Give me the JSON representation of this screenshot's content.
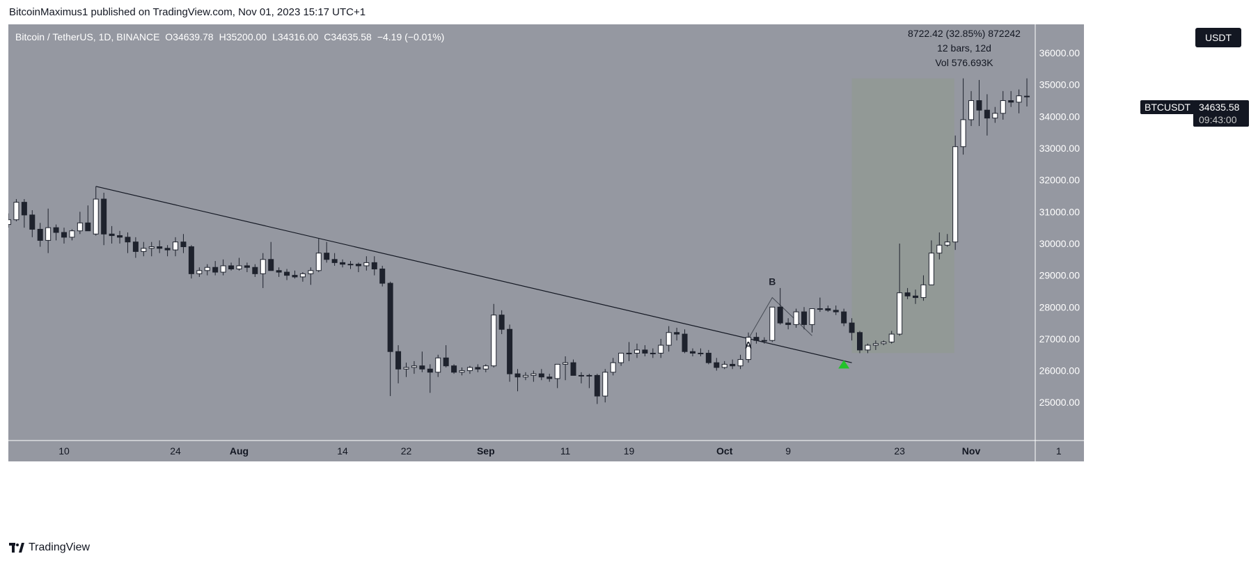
{
  "header": {
    "published": "BitcoinMaximus1 published on TradingView.com, Nov 01, 2023 15:17 UTC+1"
  },
  "symbol": {
    "title": "Bitcoin / TetherUS, 1D, BINANCE",
    "o_key": "O",
    "o_val": "34639.78",
    "h_key": "H",
    "h_val": "35200.00",
    "l_key": "L",
    "l_val": "34316.00",
    "c_key": "C",
    "c_val": "34635.58",
    "change": "−4.19 (−0.01%)"
  },
  "measure": {
    "line1": "8722.42 (32.85%) 872242",
    "line2": "12 bars, 12d",
    "line3": "Vol 576.693K"
  },
  "currency_button": "USDT",
  "price_label": {
    "symbol": "BTCUSDT",
    "price": "34635.58",
    "countdown": "09:43:00"
  },
  "brand": "TradingView",
  "colors": {
    "background": "#9598a1",
    "up": "#ffffff",
    "down": "#1e222d",
    "measure_band": "#8f9a8e",
    "arrow": "#22c22a",
    "trendline": "#131722"
  },
  "chart_data": {
    "type": "candlestick",
    "title": "Bitcoin / TetherUS, 1D, BINANCE",
    "ylim": [
      23800,
      36900
    ],
    "y_ticks": [
      25000,
      26000,
      27000,
      28000,
      29000,
      30000,
      31000,
      32000,
      33000,
      34000,
      35000,
      36000
    ],
    "y_tick_labels": [
      "25000.00",
      "26000.00",
      "27000.00",
      "28000.00",
      "29000.00",
      "30000.00",
      "31000.00",
      "32000.00",
      "33000.00",
      "34000.00",
      "35000.00",
      "36000.00"
    ],
    "x_ticks": [
      {
        "label": "10",
        "day": 7,
        "bold": false
      },
      {
        "label": "24",
        "day": 21,
        "bold": false
      },
      {
        "label": "Aug",
        "day": 29,
        "bold": true
      },
      {
        "label": "14",
        "day": 42,
        "bold": false
      },
      {
        "label": "22",
        "day": 50,
        "bold": false
      },
      {
        "label": "Sep",
        "day": 60,
        "bold": true
      },
      {
        "label": "11",
        "day": 70,
        "bold": false
      },
      {
        "label": "19",
        "day": 78,
        "bold": false
      },
      {
        "label": "Oct",
        "day": 90,
        "bold": true
      },
      {
        "label": "9",
        "day": 98,
        "bold": false
      },
      {
        "label": "23",
        "day": 112,
        "bold": false
      },
      {
        "label": "Nov",
        "day": 121,
        "bold": true
      },
      {
        "label": "1",
        "day": 132,
        "bold": false
      }
    ],
    "first_day": "2023-07-03",
    "candles": [
      [
        30600,
        30950,
        30500,
        30750
      ],
      [
        30750,
        31400,
        30700,
        31300
      ],
      [
        31300,
        31400,
        30500,
        30900
      ],
      [
        30900,
        31050,
        30200,
        30450
      ],
      [
        30450,
        30650,
        29900,
        30100
      ],
      [
        30100,
        31100,
        29700,
        30500
      ],
      [
        30500,
        30600,
        30100,
        30350
      ],
      [
        30350,
        30500,
        30000,
        30200
      ],
      [
        30200,
        30450,
        30100,
        30400
      ],
      [
        30400,
        31000,
        30300,
        30650
      ],
      [
        30650,
        31200,
        30400,
        30400
      ],
      [
        30300,
        31800,
        30250,
        31400
      ],
      [
        31400,
        31600,
        29950,
        30300
      ],
      [
        30300,
        30550,
        30000,
        30250
      ],
      [
        30250,
        30400,
        30000,
        30200
      ],
      [
        30200,
        30350,
        29700,
        30050
      ],
      [
        30050,
        30200,
        29550,
        29750
      ],
      [
        29750,
        30050,
        29600,
        29850
      ],
      [
        29850,
        30050,
        29600,
        29900
      ],
      [
        29900,
        30100,
        29700,
        29850
      ],
      [
        29850,
        29950,
        29600,
        29800
      ],
      [
        29800,
        30200,
        29600,
        30050
      ],
      [
        30050,
        30300,
        29700,
        29900
      ],
      [
        29900,
        29950,
        28900,
        29050
      ],
      [
        29050,
        29250,
        28950,
        29150
      ],
      [
        29150,
        29350,
        29000,
        29250
      ],
      [
        29250,
        29450,
        29000,
        29100
      ],
      [
        29100,
        29500,
        29000,
        29300
      ],
      [
        29300,
        29400,
        29150,
        29200
      ],
      [
        29200,
        29550,
        29150,
        29300
      ],
      [
        29300,
        29400,
        29100,
        29250
      ],
      [
        29250,
        29350,
        28950,
        29050
      ],
      [
        29050,
        29700,
        28600,
        29500
      ],
      [
        29500,
        30050,
        29200,
        29150
      ],
      [
        29150,
        29250,
        28950,
        29100
      ],
      [
        29100,
        29200,
        28850,
        29000
      ],
      [
        29000,
        29150,
        28900,
        28950
      ],
      [
        28950,
        29100,
        28800,
        29050
      ],
      [
        29050,
        29250,
        28700,
        29150
      ],
      [
        29150,
        30150,
        29100,
        29700
      ],
      [
        29700,
        30050,
        29400,
        29500
      ],
      [
        29500,
        29700,
        29300,
        29400
      ],
      [
        29400,
        29500,
        29250,
        29350
      ],
      [
        29350,
        29450,
        29200,
        29350
      ],
      [
        29350,
        29400,
        29100,
        29300
      ],
      [
        29300,
        29600,
        29150,
        29400
      ],
      [
        29400,
        29600,
        29000,
        29200
      ],
      [
        29200,
        29300,
        28650,
        28750
      ],
      [
        28750,
        28800,
        25200,
        26600
      ],
      [
        26600,
        26800,
        25600,
        26050
      ],
      [
        26050,
        26250,
        25800,
        26100
      ],
      [
        26100,
        26300,
        25900,
        26150
      ],
      [
        26150,
        26600,
        25950,
        26050
      ],
      [
        26050,
        26200,
        25300,
        25950
      ],
      [
        25950,
        26500,
        25800,
        26400
      ],
      [
        26400,
        26800,
        26100,
        26150
      ],
      [
        26150,
        26200,
        25900,
        25950
      ],
      [
        25950,
        26100,
        25850,
        26000
      ],
      [
        26000,
        26150,
        25900,
        26100
      ],
      [
        26100,
        26200,
        25950,
        26050
      ],
      [
        26050,
        26200,
        25950,
        26150
      ],
      [
        26150,
        28100,
        26100,
        27750
      ],
      [
        27750,
        27900,
        27150,
        27300
      ],
      [
        27300,
        27450,
        25650,
        25900
      ],
      [
        25900,
        26050,
        25350,
        25800
      ],
      [
        25800,
        25950,
        25700,
        25850
      ],
      [
        25850,
        26000,
        25650,
        25900
      ],
      [
        25900,
        26050,
        25700,
        25800
      ],
      [
        25800,
        25900,
        25650,
        25750
      ],
      [
        25750,
        26100,
        25450,
        26200
      ],
      [
        26200,
        26450,
        25700,
        26250
      ],
      [
        26250,
        26350,
        25900,
        25850
      ],
      [
        25850,
        25950,
        25600,
        25850
      ],
      [
        25850,
        25900,
        25450,
        25850
      ],
      [
        25850,
        25900,
        24950,
        25200
      ],
      [
        25200,
        26050,
        25000,
        25950
      ],
      [
        25950,
        26400,
        25850,
        26250
      ],
      [
        26250,
        26550,
        26150,
        26550
      ],
      [
        26550,
        26900,
        26300,
        26550
      ],
      [
        26550,
        26850,
        26400,
        26650
      ],
      [
        26650,
        26800,
        26450,
        26550
      ],
      [
        26550,
        26700,
        26400,
        26550
      ],
      [
        26550,
        27000,
        26400,
        26800
      ],
      [
        26800,
        27400,
        26600,
        27200
      ],
      [
        27200,
        27350,
        26950,
        27150
      ],
      [
        27150,
        27300,
        26550,
        26600
      ],
      [
        26600,
        26700,
        26450,
        26550
      ],
      [
        26550,
        26700,
        26450,
        26550
      ],
      [
        26550,
        26650,
        26200,
        26250
      ],
      [
        26250,
        26400,
        26000,
        26100
      ],
      [
        26100,
        26300,
        26050,
        26200
      ],
      [
        26200,
        26350,
        26050,
        26150
      ],
      [
        26150,
        26500,
        26050,
        26350
      ],
      [
        26350,
        27200,
        26250,
        27050
      ],
      [
        27050,
        27200,
        26850,
        26950
      ],
      [
        26950,
        27050,
        26850,
        26950
      ],
      [
        26950,
        28000,
        26900,
        28000
      ],
      [
        28000,
        28600,
        27450,
        27500
      ],
      [
        27500,
        27650,
        27300,
        27450
      ],
      [
        27450,
        27950,
        27350,
        27850
      ],
      [
        27850,
        28000,
        27300,
        27450
      ],
      [
        27450,
        27900,
        27200,
        27950
      ],
      [
        27950,
        28300,
        27850,
        27950
      ],
      [
        27950,
        28050,
        27850,
        27900
      ],
      [
        27900,
        28050,
        27750,
        27850
      ],
      [
        27850,
        27950,
        27400,
        27500
      ],
      [
        27500,
        27650,
        26950,
        27200
      ],
      [
        27200,
        27250,
        26550,
        26650
      ],
      [
        26650,
        26850,
        26550,
        26800
      ],
      [
        26800,
        26950,
        26650,
        26850
      ],
      [
        26850,
        26950,
        26800,
        26900
      ],
      [
        26900,
        27250,
        26850,
        27150
      ],
      [
        27150,
        30000,
        27100,
        28450
      ],
      [
        28450,
        28600,
        28250,
        28350
      ],
      [
        28350,
        28550,
        28100,
        28300
      ],
      [
        28300,
        29000,
        28200,
        28700
      ],
      [
        28700,
        30100,
        28700,
        29700
      ],
      [
        29700,
        30350,
        29500,
        29950
      ],
      [
        29950,
        30300,
        29900,
        30050
      ],
      [
        30050,
        33400,
        29800,
        33050
      ],
      [
        33050,
        35200,
        32800,
        33900
      ],
      [
        33900,
        34800,
        33700,
        34500
      ],
      [
        34500,
        35150,
        33700,
        34200
      ],
      [
        34200,
        34700,
        33400,
        33950
      ],
      [
        33950,
        34300,
        33800,
        34100
      ],
      [
        34100,
        34800,
        33900,
        34500
      ],
      [
        34500,
        34800,
        34300,
        34450
      ],
      [
        34450,
        34850,
        34100,
        34650
      ],
      [
        34640,
        35200,
        34316,
        34636
      ]
    ],
    "trendline": {
      "from": {
        "day": 11,
        "price": 31800
      },
      "to": {
        "day": 106,
        "price": 26250
      }
    },
    "measure_range": {
      "start_day": 106,
      "end_day": 118,
      "low": 26550,
      "high": 35200
    },
    "wave_lines": [
      {
        "day": 93,
        "price": 27000
      },
      {
        "day": 96,
        "price": 28300
      },
      {
        "day": 101,
        "price": 27100
      }
    ],
    "annotations": [
      {
        "text": "A",
        "day": 93,
        "price": 26700
      },
      {
        "text": "B",
        "day": 96,
        "price": 28700
      }
    ],
    "arrow_marker": {
      "day": 105,
      "price": 26200
    }
  }
}
